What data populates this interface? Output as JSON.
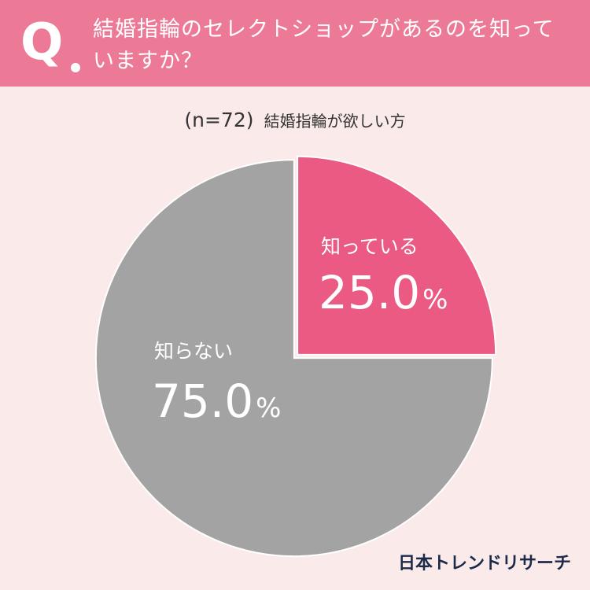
{
  "header": {
    "q_label": "Q",
    "question": "結婚指輪のセレクトショップがあるのを知っていますか？"
  },
  "subtitle": {
    "sample": "(n=72)",
    "respondents": "結婚指輪が欲しい方"
  },
  "colors": {
    "header_bg": "#ec7a97",
    "page_bg": "#fbeaea",
    "slice_know": "#ea5a82",
    "slice_dont_know": "#a3a3a3"
  },
  "chart_data": {
    "type": "pie",
    "title": "",
    "slices": [
      {
        "label": "知っている",
        "value": 25.0,
        "display": "25.0",
        "color": "#ea5a82"
      },
      {
        "label": "知らない",
        "value": 75.0,
        "display": "75.0",
        "color": "#a3a3a3"
      }
    ],
    "unit": "%",
    "start_angle": "12 o'clock, clockwise"
  },
  "logo": "日本トレンドリサーチ"
}
